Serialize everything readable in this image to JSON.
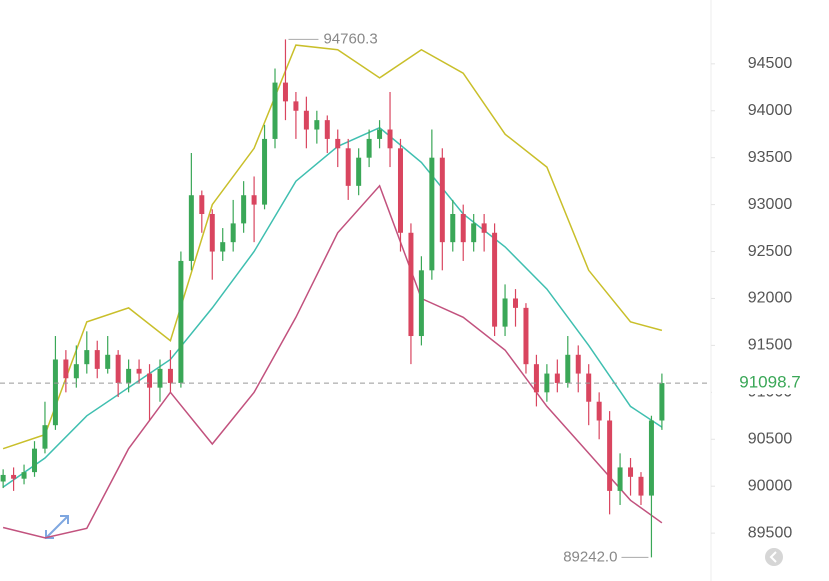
{
  "chart_data": {
    "type": "candlestick",
    "xlim": [
      -0.3,
      67.6
    ],
    "ylim": [
      88990,
      95180
    ],
    "yticks": [
      89500,
      90000,
      90500,
      91000,
      91500,
      92000,
      92500,
      93000,
      93500,
      94000,
      94500
    ],
    "up_color": "#3aa757",
    "down_color": "#d9455f",
    "open": [
      90050,
      90120,
      90080,
      90150,
      90400,
      90650,
      91350,
      91150,
      91300,
      91450,
      91250,
      91400,
      91100,
      91250,
      91200,
      91050,
      91250,
      91100,
      92400,
      93100,
      92900,
      92500,
      92600,
      92800,
      93100,
      93000,
      93700,
      94300,
      94100,
      94000,
      93800,
      93900,
      93700,
      93600,
      93200,
      93500,
      93700,
      93800,
      93600,
      92700,
      91600,
      92300,
      93500,
      92600,
      92900,
      92600,
      92800,
      92700,
      91700,
      92000,
      91900,
      91300,
      91000,
      91200,
      91100,
      91400,
      91200,
      90900,
      90700,
      89950,
      90200,
      90100,
      89900,
      90700
    ],
    "high": [
      90180,
      90200,
      90230,
      90480,
      90900,
      91600,
      91450,
      91500,
      91650,
      91550,
      91600,
      91450,
      91350,
      91350,
      91300,
      91350,
      91450,
      92500,
      93550,
      93150,
      92950,
      92750,
      93050,
      93250,
      93300,
      93850,
      94450,
      94760.3,
      94200,
      94150,
      94000,
      93950,
      93800,
      93700,
      93600,
      93800,
      93900,
      94200,
      93700,
      92800,
      92450,
      93800,
      93600,
      93050,
      93000,
      92900,
      92900,
      92800,
      92150,
      92100,
      91950,
      91400,
      91300,
      91350,
      91600,
      91500,
      91300,
      91000,
      90800,
      90350,
      90300,
      90150,
      90750,
      91200
    ],
    "low": [
      89980,
      89950,
      90020,
      90100,
      90350,
      90600,
      91000,
      91050,
      91200,
      91150,
      91200,
      90950,
      91000,
      91100,
      90700,
      90900,
      91000,
      91050,
      92300,
      92700,
      92200,
      92400,
      92500,
      92700,
      92600,
      92950,
      93600,
      93900,
      93700,
      93600,
      93650,
      93550,
      93400,
      93050,
      93100,
      93400,
      93600,
      93400,
      92500,
      91300,
      91500,
      92200,
      92300,
      92500,
      92400,
      92500,
      92500,
      91600,
      91600,
      91700,
      91200,
      90850,
      90900,
      91000,
      91050,
      91000,
      90650,
      90500,
      89700,
      89800,
      89900,
      89800,
      89242.0,
      90600
    ],
    "close": [
      90120,
      90080,
      90150,
      90400,
      90650,
      91350,
      91150,
      91300,
      91450,
      91250,
      91400,
      91100,
      91250,
      91200,
      91050,
      91250,
      91100,
      92400,
      93100,
      92900,
      92500,
      92600,
      92800,
      93100,
      93000,
      93700,
      94300,
      94100,
      94000,
      93800,
      93900,
      93700,
      93600,
      93200,
      93500,
      93700,
      93800,
      93600,
      92700,
      91600,
      92300,
      93500,
      92600,
      92900,
      92600,
      92800,
      92700,
      91700,
      92000,
      91900,
      91300,
      91000,
      91200,
      91100,
      91400,
      91200,
      90900,
      90700,
      89950,
      90200,
      90100,
      89900,
      90700,
      91098.7
    ],
    "bands": [
      {
        "color": "#c9bf2a",
        "x": [
          0,
          4,
          8,
          12,
          16,
          20,
          24,
          28,
          32,
          36,
          40,
          44,
          48,
          52,
          56,
          60,
          63
        ],
        "values": [
          90400,
          90550,
          91750,
          91900,
          91550,
          93000,
          93600,
          94700,
          94650,
          94350,
          94650,
          94400,
          93750,
          93400,
          92300,
          91750,
          91660
        ]
      },
      {
        "color": "#3fbfb0",
        "x": [
          0,
          4,
          8,
          12,
          16,
          20,
          24,
          28,
          32,
          36,
          40,
          44,
          48,
          52,
          56,
          60,
          63
        ],
        "values": [
          89990,
          90300,
          90750,
          91050,
          91350,
          91900,
          92500,
          93250,
          93620,
          93820,
          93450,
          92900,
          92550,
          92100,
          91500,
          90850,
          90630
        ]
      },
      {
        "color": "#c2527e",
        "x": [
          0,
          4,
          8,
          12,
          16,
          20,
          24,
          28,
          32,
          36,
          40,
          44,
          48,
          52,
          56,
          60,
          63
        ],
        "values": [
          89560,
          89450,
          89550,
          90400,
          91000,
          90450,
          91000,
          91800,
          92700,
          93200,
          92000,
          91800,
          91450,
          90850,
          90350,
          89850,
          89610
        ]
      }
    ],
    "max_annotation": 94760.3,
    "max_index": 27,
    "min_annotation": {
      "value": 89242.0,
      "label": "89242.0"
    },
    "min_index": 62,
    "last_price": 91098.7
  }
}
